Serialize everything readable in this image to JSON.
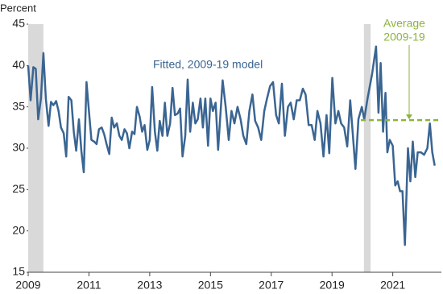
{
  "chart_data": {
    "type": "line",
    "y_label": "Percent",
    "annotation": "Fitted, 2009-19 model",
    "x": [
      2009.0,
      2009.08,
      2009.17,
      2009.25,
      2009.33,
      2009.42,
      2009.5,
      2009.58,
      2009.67,
      2009.75,
      2009.83,
      2009.92,
      2010.0,
      2010.08,
      2010.17,
      2010.25,
      2010.33,
      2010.42,
      2010.5,
      2010.58,
      2010.67,
      2010.75,
      2010.83,
      2010.92,
      2011.0,
      2011.08,
      2011.17,
      2011.25,
      2011.33,
      2011.42,
      2011.5,
      2011.58,
      2011.67,
      2011.75,
      2011.83,
      2011.92,
      2012.0,
      2012.08,
      2012.17,
      2012.25,
      2012.33,
      2012.42,
      2012.5,
      2012.58,
      2012.67,
      2012.75,
      2012.83,
      2012.92,
      2013.0,
      2013.08,
      2013.17,
      2013.25,
      2013.33,
      2013.42,
      2013.5,
      2013.58,
      2013.67,
      2013.75,
      2013.83,
      2013.92,
      2014.0,
      2014.08,
      2014.17,
      2014.25,
      2014.33,
      2014.42,
      2014.5,
      2014.58,
      2014.67,
      2014.75,
      2014.83,
      2014.92,
      2015.0,
      2015.08,
      2015.17,
      2015.25,
      2015.4,
      2015.5,
      2015.6,
      2015.69,
      2015.79,
      2015.89,
      2015.99,
      2016.08,
      2016.18,
      2016.28,
      2016.38,
      2016.47,
      2016.57,
      2016.67,
      2016.77,
      2016.86,
      2016.96,
      2017.06,
      2017.16,
      2017.25,
      2017.35,
      2017.45,
      2017.55,
      2017.64,
      2017.74,
      2017.84,
      2017.94,
      2018.04,
      2018.13,
      2018.23,
      2018.33,
      2018.43,
      2018.52,
      2018.62,
      2018.72,
      2018.82,
      2018.91,
      2019.01,
      2019.11,
      2019.21,
      2019.3,
      2019.4,
      2019.5,
      2019.6,
      2019.77,
      2019.87,
      2019.98,
      2020.06,
      2020.17,
      2020.32,
      2020.45,
      2020.53,
      2020.6,
      2020.68,
      2020.76,
      2020.82,
      2020.9,
      2021.0,
      2021.08,
      2021.16,
      2021.24,
      2021.32,
      2021.4,
      2021.5,
      2021.58,
      2021.66,
      2021.74,
      2021.82,
      2021.93,
      2022.03,
      2022.14,
      2022.22,
      2022.3,
      2022.38
    ],
    "series": [
      {
        "name": "Fitted, 2009-19 model",
        "color": "#3a6592",
        "values": [
          40,
          35.8,
          39.8,
          39.6,
          33.5,
          36,
          41.5,
          36,
          32.7,
          35.6,
          35.2,
          35.7,
          34.5,
          32.5,
          31.8,
          29,
          36.2,
          35.8,
          32,
          29.7,
          33.5,
          29.7,
          27.1,
          38,
          34.5,
          31,
          30.8,
          30.5,
          32.3,
          32.5,
          31.7,
          30.5,
          29.3,
          33.7,
          32.5,
          33,
          31.5,
          31,
          32.3,
          31.8,
          30,
          32,
          31.7,
          35,
          33.8,
          32,
          32.8,
          29.8,
          31,
          37.4,
          32,
          29.7,
          33.3,
          31.5,
          35.5,
          31.5,
          33,
          37.3,
          34,
          34.2,
          34.8,
          29,
          31.5,
          38.3,
          32,
          35.5,
          33,
          33.5,
          36,
          32.5,
          36,
          30.3,
          36,
          34.5,
          35.5,
          29.8,
          38.2,
          35,
          31,
          34.5,
          33,
          35,
          33.5,
          31.5,
          30.5,
          34.5,
          36.5,
          33.3,
          32.5,
          31,
          34.5,
          36,
          37.5,
          38,
          34,
          33,
          37.8,
          31.5,
          35,
          35.5,
          33.5,
          35.8,
          35.8,
          37.2,
          36.5,
          32.8,
          32.8,
          31,
          34.5,
          33,
          29,
          34,
          29.4,
          38.5,
          33,
          34.5,
          33,
          32.5,
          30.2,
          35.8,
          27.5,
          33.5,
          35,
          33.5,
          36,
          39,
          42.3,
          34.3,
          40.3,
          32,
          36.7,
          29.5,
          31,
          30.3,
          25.5,
          26,
          24.8,
          24.8,
          18.3,
          30,
          26,
          30.8,
          26.5,
          29.5,
          29.5,
          29.2,
          30,
          33,
          29.5,
          27.9
        ]
      }
    ],
    "average_line": {
      "label": [
        "Average",
        "2009-19"
      ],
      "value": 33.4,
      "x": [
        2019.95,
        2022.5
      ],
      "color": "#8db33a"
    },
    "shaded_periods": [
      [
        2009.0,
        2009.5
      ],
      [
        2020.05,
        2020.27
      ]
    ],
    "shade_color": "#d9d9d9",
    "xlim": [
      2009,
      2022.6
    ],
    "xticks": [
      2009,
      2011,
      2013,
      2015,
      2017,
      2019,
      2021
    ],
    "ylim": [
      15,
      45
    ],
    "yticks": [
      15,
      20,
      25,
      30,
      35,
      40,
      45
    ],
    "grid": false
  }
}
